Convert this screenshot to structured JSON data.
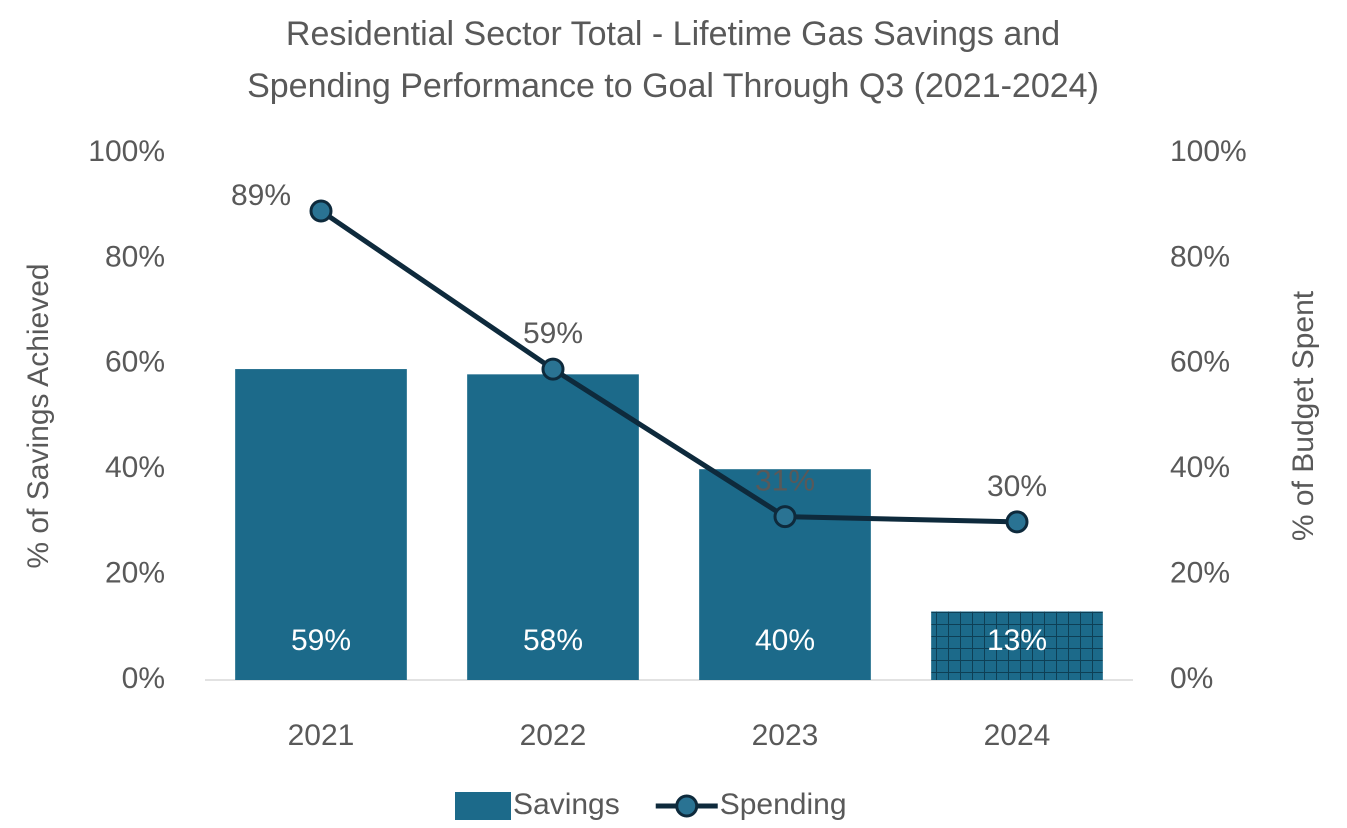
{
  "chart_data": {
    "type": "bar-line",
    "title": [
      "Residential Sector Total - Lifetime Gas Savings and",
      "Spending Performance to Goal Through Q3 (2021-2024)"
    ],
    "ylabel": "% of Savings Achieved",
    "y2label": "% of Budget Spent",
    "categories": [
      "2021",
      "2022",
      "2023",
      "2024"
    ],
    "series": [
      {
        "name": "Savings",
        "type": "bar",
        "color": "#1c6a8a",
        "values": [
          59,
          58,
          40,
          13
        ],
        "value_labels": [
          "59%",
          "58%",
          "40%",
          "13%"
        ],
        "hatched": [
          false,
          false,
          false,
          true
        ]
      },
      {
        "name": "Spending",
        "type": "line",
        "axis": "y2",
        "color": "#0e2a3c",
        "marker_color": "#2a7393",
        "values": [
          89,
          59,
          31,
          30
        ],
        "value_labels": [
          "89%",
          "59%",
          "31%",
          "30%"
        ]
      }
    ],
    "ylim": [
      0,
      100
    ],
    "yticks": [
      {
        "value": 0,
        "label": "0%"
      },
      {
        "value": 20,
        "label": "20%"
      },
      {
        "value": 40,
        "label": "40%"
      },
      {
        "value": 60,
        "label": "60%"
      },
      {
        "value": 80,
        "label": "80%"
      },
      {
        "value": 100,
        "label": "100%"
      }
    ],
    "y2lim": [
      0,
      100
    ],
    "y2ticks": [
      {
        "value": 0,
        "label": "0%"
      },
      {
        "value": 20,
        "label": "20%"
      },
      {
        "value": 40,
        "label": "40%"
      },
      {
        "value": 60,
        "label": "60%"
      },
      {
        "value": 80,
        "label": "80%"
      },
      {
        "value": 100,
        "label": "100%"
      }
    ],
    "legend": "bottom"
  }
}
